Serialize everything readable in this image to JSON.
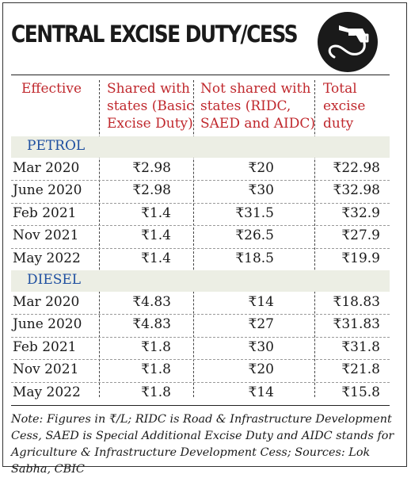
{
  "title": "CENTRAL EXCISE DUTY/CESS",
  "icon": "fuel-nozzle-icon",
  "colors": {
    "header_text": "#c0282d",
    "section_text": "#1e4fa0",
    "band": "#eceee4"
  },
  "chart_data": {
    "type": "table",
    "columns": [
      "Effective",
      "Shared with states (Basic Excise Duty)",
      "Not shared with states (RIDC, SAED and AIDC)",
      "Total excise duty"
    ],
    "header_lines": [
      [
        "Effective"
      ],
      [
        "Shared with",
        "states (Basic",
        "Excise Duty)"
      ],
      [
        "Not shared with",
        "states (RIDC,",
        "SAED and AIDC)"
      ],
      [
        "Total",
        "excise",
        "duty"
      ]
    ],
    "sections": [
      {
        "name": "PETROL",
        "rows": [
          [
            "Mar 2020",
            "₹2.98",
            "₹20",
            "₹22.98"
          ],
          [
            "June 2020",
            "₹2.98",
            "₹30",
            "₹32.98"
          ],
          [
            "Feb 2021",
            "₹1.4",
            "₹31.5",
            "₹32.9"
          ],
          [
            "Nov 2021",
            "₹1.4",
            "₹26.5",
            "₹27.9"
          ],
          [
            "May 2022",
            "₹1.4",
            "₹18.5",
            "₹19.9"
          ]
        ]
      },
      {
        "name": "DIESEL",
        "rows": [
          [
            "Mar 2020",
            "₹4.83",
            "₹14",
            "₹18.83"
          ],
          [
            "June 2020",
            "₹4.83",
            "₹27",
            "₹31.83"
          ],
          [
            "Feb 2021",
            "₹1.8",
            "₹30",
            "₹31.8"
          ],
          [
            "Nov 2021",
            "₹1.8",
            "₹20",
            "₹21.8"
          ],
          [
            "May 2022",
            "₹1.8",
            "₹14",
            "₹15.8"
          ]
        ]
      }
    ]
  },
  "note": "Note: Figures in ₹/L; RIDC is Road & Infrastructure Development Cess, SAED is Special Additional Excise Duty and AIDC stands for Agriculture & Infrastructure Development Cess; Sources: Lok Sabha, CBIC"
}
